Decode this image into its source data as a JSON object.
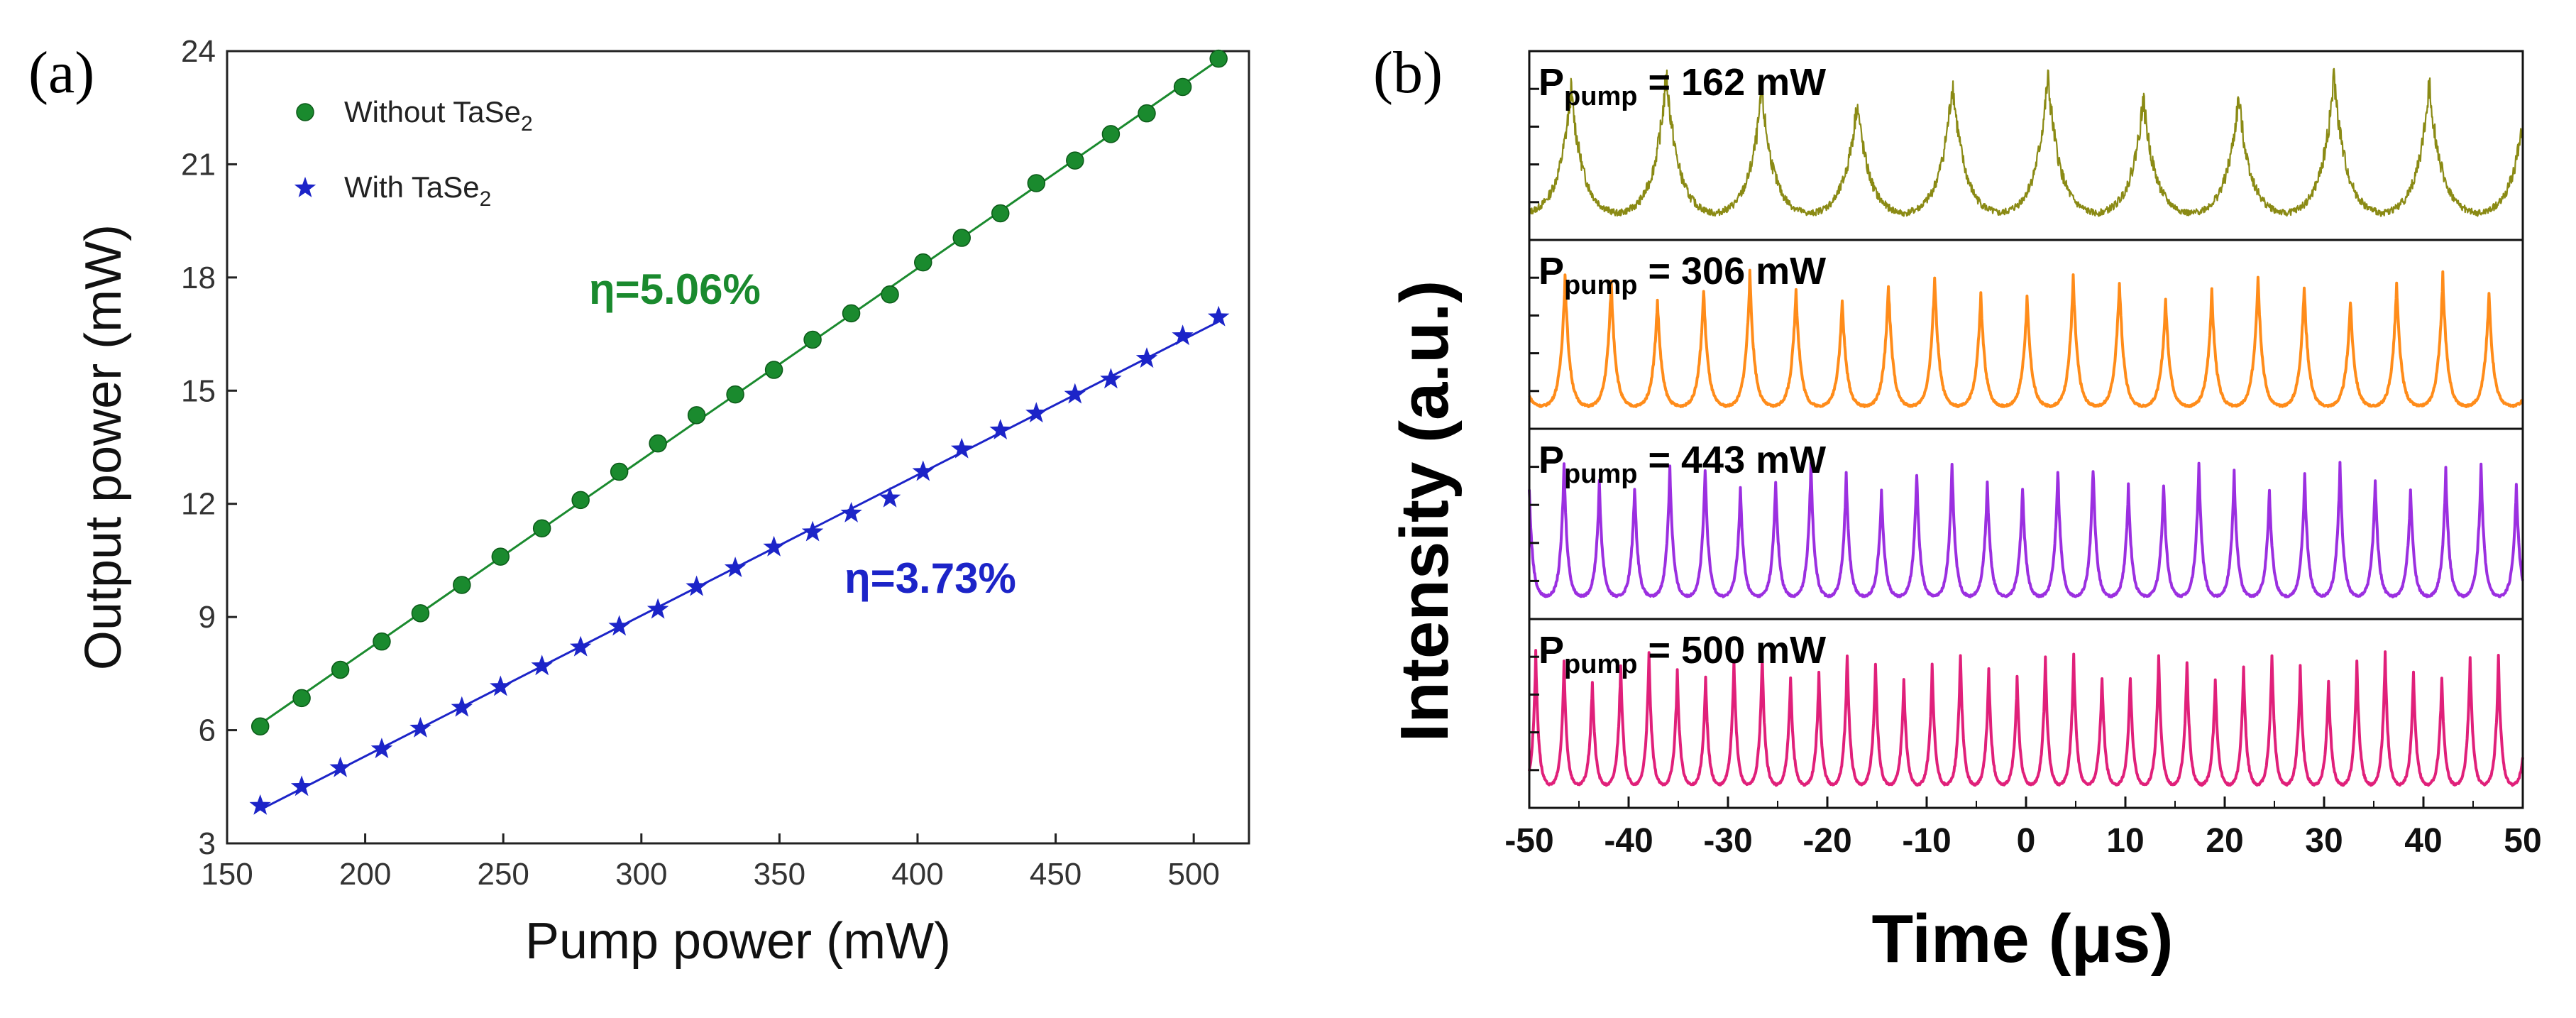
{
  "chart_data": [
    {
      "type": "line",
      "panel_label": "(a)",
      "title": "",
      "xlabel": "Pump power (mW)",
      "ylabel": "Output power (mW)",
      "xlim": [
        150,
        520
      ],
      "ylim": [
        3,
        24
      ],
      "xticks": [
        150,
        200,
        250,
        300,
        350,
        400,
        450,
        500
      ],
      "yticks": [
        3,
        6,
        9,
        12,
        15,
        18,
        21,
        24
      ],
      "legend_position": "top-left",
      "series": [
        {
          "name": "Without TaSe",
          "name_sub": "2",
          "marker": "circle",
          "color": "#1a8a2e",
          "x": [
            162,
            177,
            191,
            206,
            220,
            235,
            249,
            264,
            278,
            292,
            306,
            320,
            334,
            348,
            362,
            376,
            390,
            402,
            416,
            430,
            443,
            457,
            470,
            483,
            496,
            509
          ],
          "y": [
            6.1,
            6.85,
            7.6,
            8.35,
            9.1,
            9.85,
            10.6,
            11.35,
            12.1,
            12.85,
            13.6,
            14.35,
            14.9,
            15.55,
            16.35,
            17.05,
            17.55,
            18.4,
            19.05,
            19.7,
            20.5,
            21.1,
            21.8,
            22.35,
            23.05,
            23.8
          ],
          "fit_label": "η=5.06%"
        },
        {
          "name": "With TaSe",
          "name_sub": "2",
          "marker": "star",
          "color": "#1c24c8",
          "x": [
            162,
            177,
            191,
            206,
            220,
            235,
            249,
            264,
            278,
            292,
            306,
            320,
            334,
            348,
            362,
            376,
            390,
            402,
            416,
            430,
            443,
            457,
            470,
            483,
            496,
            509
          ],
          "y": [
            4.0,
            4.5,
            5.0,
            5.5,
            6.05,
            6.6,
            7.15,
            7.7,
            8.2,
            8.75,
            9.2,
            9.8,
            10.3,
            10.85,
            11.25,
            11.75,
            12.15,
            12.85,
            13.45,
            13.95,
            14.4,
            14.9,
            15.3,
            15.85,
            16.45,
            16.95
          ],
          "fit_label": "η=3.73%"
        }
      ]
    },
    {
      "type": "line",
      "panel_label": "(b)",
      "title": "",
      "xlabel": "Time (μs)",
      "ylabel": "Intensity (a.u.)",
      "xlim": [
        -50,
        50
      ],
      "xticks": [
        -50,
        -40,
        -30,
        -20,
        -10,
        0,
        10,
        20,
        30,
        40,
        50
      ],
      "series": [
        {
          "name": "P",
          "name_sub": "pump",
          "label_value": " = 162 mW",
          "color": "#8a8a14",
          "period_us": 9.6,
          "first_peak_us": -45.8,
          "peak_width_us": 1.2
        },
        {
          "name": "P",
          "name_sub": "pump",
          "label_value": " = 306 mW",
          "color": "#ff8c1a",
          "period_us": 4.65,
          "first_peak_us": -46.4,
          "peak_width_us": 0.45
        },
        {
          "name": "P",
          "name_sub": "pump",
          "label_value": " = 443 mW",
          "color": "#9b2fe0",
          "period_us": 3.55,
          "first_peak_us": -46.5,
          "peak_width_us": 0.35
        },
        {
          "name": "P",
          "name_sub": "pump",
          "label_value": " = 500 mW",
          "color": "#e0207a",
          "period_us": 2.85,
          "first_peak_us": -46.5,
          "peak_width_us": 0.3
        }
      ]
    }
  ]
}
